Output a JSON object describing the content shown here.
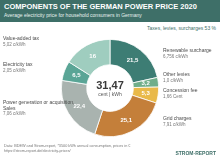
{
  "chart_data": {
    "type": "doughnut",
    "title": "COMPONENTS OF THE GERMAN POWER PRICE 2020",
    "subtitle": "Average electricity price for household consumers in Germany",
    "center_value": "31,47",
    "center_unit": "cent | kWh",
    "group_note": "Taxes, levies, surcharges 53 %",
    "categories": [
      "Renewable surcharge",
      "Other levies",
      "Concession fee",
      "Grid charges",
      "Power generation or acquisition, Sales",
      "Electricity tax",
      "Value-added tax"
    ],
    "category_notes": [
      "6,756 c/kWh",
      "1,0 c/kWh",
      "1,66 Cent",
      "7,91 c/kWh",
      "7,06 c/kWh",
      "2,05 c/kWh",
      "5,02 c/kWh"
    ],
    "values": [
      21.5,
      3.2,
      5.3,
      25.1,
      22.4,
      6.5,
      16
    ],
    "value_labels": [
      "21,5",
      "3,2",
      "5,3",
      "25,1",
      "22,4",
      "6,5",
      "16"
    ],
    "colors": [
      "#3d7d74",
      "#6fae8a",
      "#e9b949",
      "#c47f3a",
      "#a9b3af",
      "#5aa596",
      "#9fcdbf"
    ],
    "data_labels": true,
    "footer": [
      "Data: BDEW and Strom-report, *3500 kWh annual consumption, prices in €",
      "https://strom-report.de/electricity-prices/"
    ],
    "brand": "STROM-REPORT"
  }
}
